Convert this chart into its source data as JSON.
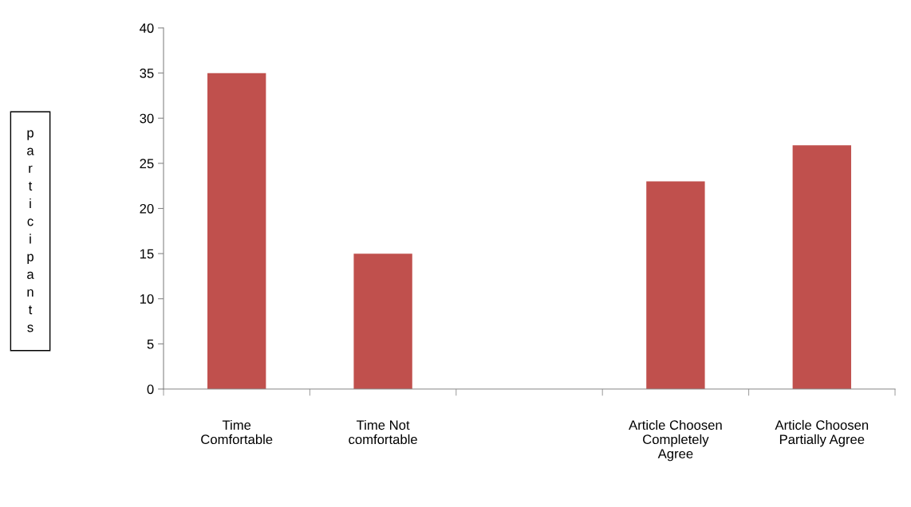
{
  "chart_data": {
    "type": "bar",
    "ylabel": "participants",
    "categories": [
      "Time\nComfortable",
      "Time Not\ncomfortable",
      null,
      "Article Choosen\nCompletely\nAgree",
      "Article Choosen\nPartially Agree"
    ],
    "values": [
      35,
      15,
      null,
      23,
      27
    ],
    "color": "#c0504d",
    "ylim": [
      0,
      40
    ],
    "yticks": [
      0,
      5,
      10,
      15,
      20,
      25,
      30,
      35,
      40
    ],
    "grid": false,
    "legend": false
  }
}
